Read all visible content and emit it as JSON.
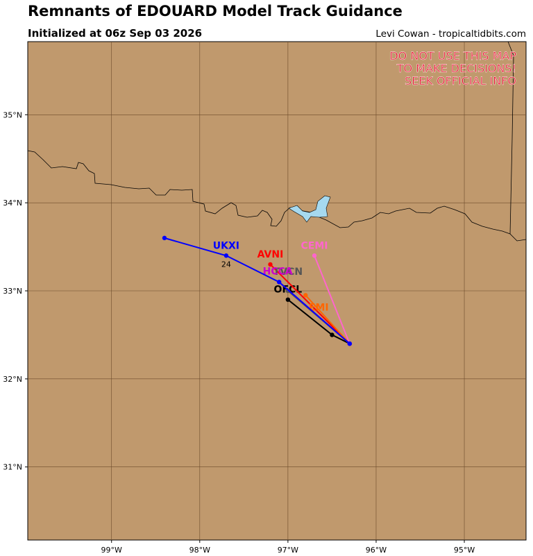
{
  "chart_data": {
    "type": "map",
    "title": "Remnants of EDOUARD Model Track Guidance",
    "subtitle": "Initialized at 06z Sep 03 2026",
    "credit": "Levi Cowan - tropicaltidbits.com",
    "warning": [
      "DO NOT USE THIS MAP",
      "TO MAKE DECISIONS!",
      "SEEK OFFICIAL INFO"
    ],
    "xlim": [
      -99.95,
      -94.3
    ],
    "ylim": [
      30.17,
      35.83
    ],
    "xticks": [
      {
        "value": -99,
        "label": "99°W"
      },
      {
        "value": -98,
        "label": "98°W"
      },
      {
        "value": -97,
        "label": "97°W"
      },
      {
        "value": -96,
        "label": "96°W"
      },
      {
        "value": -95,
        "label": "95°W"
      }
    ],
    "yticks": [
      {
        "value": 31,
        "label": "31°N"
      },
      {
        "value": 32,
        "label": "32°N"
      },
      {
        "value": 33,
        "label": "33°N"
      },
      {
        "value": 34,
        "label": "34°N"
      },
      {
        "value": 35,
        "label": "35°N"
      }
    ],
    "grid": true,
    "series": [
      {
        "name": "OFCL",
        "color": "#000000",
        "lon": [
          -96.3,
          -96.5,
          -97.0
        ],
        "lat": [
          32.4,
          32.5,
          32.9
        ]
      },
      {
        "name": "CEMI",
        "color": "#ff66cc",
        "lon": [
          -96.3,
          -96.7
        ],
        "lat": [
          32.4,
          33.4
        ]
      },
      {
        "name": "AVNI",
        "color": "#ff0000",
        "lon": [
          -96.3,
          -97.2
        ],
        "lat": [
          32.4,
          33.3
        ]
      },
      {
        "name": "EMI",
        "color": "#ff6600",
        "lon": [
          -96.3,
          -96.8
        ],
        "lat": [
          32.4,
          32.95
        ]
      },
      {
        "name": "TVCN",
        "color": "#555555",
        "lon": [
          -96.3,
          -97.0
        ],
        "lat": [
          32.4,
          33.0
        ]
      },
      {
        "name": "HCCA",
        "color": "#cc00cc",
        "lon": [
          -96.3,
          -97.1
        ],
        "lat": [
          32.4,
          33.1
        ]
      },
      {
        "name": "UKXI",
        "color": "#0000ff",
        "lon": [
          -96.3,
          -97.1,
          -97.7,
          -98.4
        ],
        "lat": [
          32.4,
          33.1,
          33.4,
          33.6
        ],
        "point_labels": [
          null,
          null,
          24,
          null
        ]
      }
    ]
  }
}
